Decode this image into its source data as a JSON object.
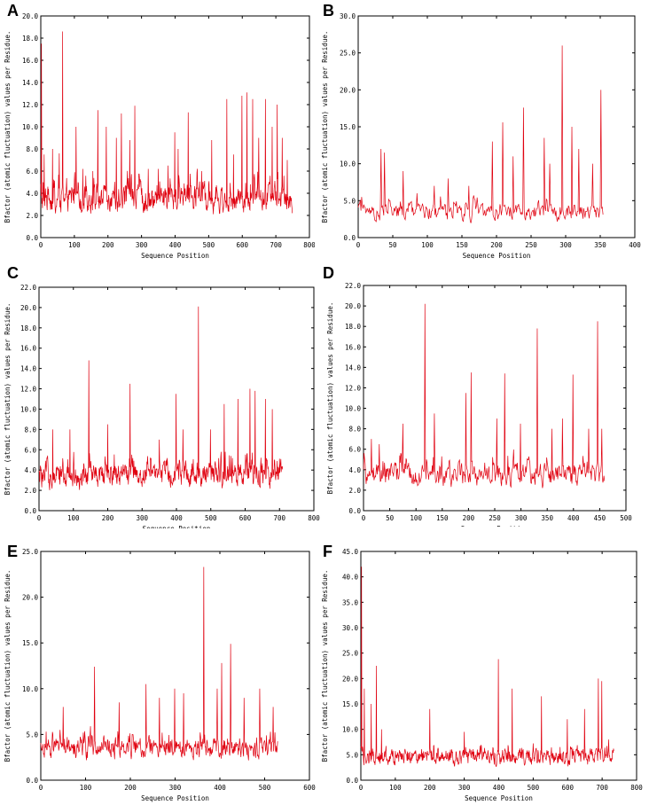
{
  "figure": {
    "panels": [
      {
        "letter": "A",
        "xlabel": "Sequence Position",
        "ylabel": "Bfactor (atomic fluctuation) values per Residue."
      },
      {
        "letter": "B",
        "xlabel": "Sequence Position",
        "ylabel": "Bfactor (atomic fluctuation) values per Residue."
      },
      {
        "letter": "C",
        "xlabel": "Sequence Position",
        "ylabel": "Bfactor (atomic fluctuation) values per Residue."
      },
      {
        "letter": "D",
        "xlabel": "Sequence Position",
        "ylabel": "Bfactor (atomic fluctuation) values per Residue."
      },
      {
        "letter": "E",
        "xlabel": "Sequence Position",
        "ylabel": "Bfactor (atomic fluctuation) values per Residue."
      },
      {
        "letter": "F",
        "xlabel": "Sequence Position",
        "ylabel": "Bfactor (atomic fluctuation) values per Residue."
      }
    ]
  },
  "colors": {
    "series": "#e0000f",
    "axis": "#000000"
  },
  "chart_data": [
    {
      "type": "line",
      "panel": "A",
      "xlabel": "Sequence Position",
      "ylabel": "Bfactor (atomic fluctuation) values per Residue.",
      "xlim": [
        0,
        800
      ],
      "ylim": [
        0,
        20
      ],
      "xticks": [
        "0",
        "100",
        "200",
        "300",
        "400",
        "500",
        "600",
        "700",
        "800"
      ],
      "yticks": [
        "0.0",
        "2.0",
        "4.0",
        "6.0",
        "8.0",
        "10.0",
        "12.0",
        "14.0",
        "16.0",
        "18.0",
        "20.0"
      ],
      "grid": false,
      "n_points": 750,
      "baseline": 3.4,
      "noise": 1.2,
      "peaks": [
        [
          2,
          17.5
        ],
        [
          10,
          7.5
        ],
        [
          35,
          8.0
        ],
        [
          55,
          7.6
        ],
        [
          65,
          18.6
        ],
        [
          105,
          10.0
        ],
        [
          125,
          6.2
        ],
        [
          155,
          6.0
        ],
        [
          170,
          11.5
        ],
        [
          195,
          10.0
        ],
        [
          225,
          9.0
        ],
        [
          240,
          11.2
        ],
        [
          265,
          8.8
        ],
        [
          280,
          11.9
        ],
        [
          320,
          6.2
        ],
        [
          350,
          6.2
        ],
        [
          380,
          6.5
        ],
        [
          400,
          9.5
        ],
        [
          410,
          8.0
        ],
        [
          440,
          11.3
        ],
        [
          480,
          6.0
        ],
        [
          510,
          8.8
        ],
        [
          555,
          12.5
        ],
        [
          575,
          7.5
        ],
        [
          600,
          12.8
        ],
        [
          615,
          13.1
        ],
        [
          632,
          12.5
        ],
        [
          650,
          9.0
        ],
        [
          670,
          12.5
        ],
        [
          690,
          10.0
        ],
        [
          705,
          12.0
        ],
        [
          720,
          9.0
        ],
        [
          735,
          7.0
        ]
      ],
      "series": [
        {
          "values": []
        }
      ]
    },
    {
      "type": "line",
      "panel": "B",
      "xlabel": "Sequence Position",
      "ylabel": "Bfactor (atomic fluctuation) values per Residue.",
      "xlim": [
        0,
        400
      ],
      "ylim": [
        0,
        30
      ],
      "xticks": [
        "0",
        "50",
        "100",
        "150",
        "200",
        "250",
        "300",
        "350",
        "400"
      ],
      "yticks": [
        "0.0",
        "5.0",
        "10.0",
        "15.0",
        "20.0",
        "25.0",
        "30.0"
      ],
      "grid": false,
      "n_points": 355,
      "baseline": 3.4,
      "noise": 1.2,
      "peaks": [
        [
          5,
          5.5
        ],
        [
          33,
          12.0
        ],
        [
          38,
          11.5
        ],
        [
          65,
          9.0
        ],
        [
          85,
          6.0
        ],
        [
          110,
          7.0
        ],
        [
          130,
          8.0
        ],
        [
          160,
          7.0
        ],
        [
          195,
          13.0
        ],
        [
          210,
          15.6
        ],
        [
          225,
          11.0
        ],
        [
          240,
          17.6
        ],
        [
          270,
          13.5
        ],
        [
          278,
          10.0
        ],
        [
          296,
          26.0
        ],
        [
          310,
          15.0
        ],
        [
          320,
          12.0
        ],
        [
          340,
          10.0
        ],
        [
          352,
          20.0
        ]
      ],
      "series": [
        {
          "values": []
        }
      ]
    },
    {
      "type": "line",
      "panel": "C",
      "xlabel": "Sequence Position",
      "ylabel": "Bfactor (atomic fluctuation) values per Residue.",
      "xlim": [
        0,
        800
      ],
      "ylim": [
        0,
        22
      ],
      "xticks": [
        "0",
        "100",
        "200",
        "300",
        "400",
        "500",
        "600",
        "700",
        "800"
      ],
      "yticks": [
        "0.0",
        "2.0",
        "4.0",
        "6.0",
        "8.0",
        "10.0",
        "12.0",
        "14.0",
        "16.0",
        "18.0",
        "20.0",
        "22.0"
      ],
      "grid": false,
      "n_points": 710,
      "baseline": 3.4,
      "noise": 1.2,
      "peaks": [
        [
          40,
          8.0
        ],
        [
          90,
          8.0
        ],
        [
          145,
          14.8
        ],
        [
          200,
          8.5
        ],
        [
          265,
          12.5
        ],
        [
          350,
          7.0
        ],
        [
          400,
          11.5
        ],
        [
          420,
          8.0
        ],
        [
          465,
          20.1
        ],
        [
          500,
          8.0
        ],
        [
          540,
          10.5
        ],
        [
          580,
          11.0
        ],
        [
          615,
          12.0
        ],
        [
          630,
          11.8
        ],
        [
          660,
          11.0
        ],
        [
          680,
          10.0
        ]
      ],
      "series": [
        {
          "values": []
        }
      ]
    },
    {
      "type": "line",
      "panel": "D",
      "xlabel": "Sequence Position",
      "ylabel": "Bfactor (atomic fluctuation) values per Residue.",
      "xlim": [
        0,
        500
      ],
      "ylim": [
        0,
        22
      ],
      "xticks": [
        "0",
        "50",
        "100",
        "150",
        "200",
        "250",
        "300",
        "350",
        "400",
        "450",
        "500"
      ],
      "yticks": [
        "0.0",
        "2.0",
        "4.0",
        "6.0",
        "8.0",
        "10.0",
        "12.0",
        "14.0",
        "16.0",
        "18.0",
        "20.0",
        "22.0"
      ],
      "grid": false,
      "n_points": 460,
      "baseline": 3.4,
      "noise": 1.2,
      "peaks": [
        [
          15,
          7.0
        ],
        [
          30,
          6.5
        ],
        [
          75,
          8.5
        ],
        [
          117,
          20.2
        ],
        [
          135,
          9.5
        ],
        [
          195,
          11.5
        ],
        [
          205,
          13.5
        ],
        [
          255,
          9.0
        ],
        [
          270,
          13.4
        ],
        [
          300,
          8.5
        ],
        [
          332,
          17.8
        ],
        [
          360,
          8.0
        ],
        [
          380,
          9.0
        ],
        [
          400,
          13.3
        ],
        [
          430,
          8.0
        ],
        [
          447,
          18.5
        ],
        [
          455,
          8.0
        ]
      ],
      "series": [
        {
          "values": []
        }
      ]
    },
    {
      "type": "line",
      "panel": "E",
      "xlabel": "Sequence Position",
      "ylabel": "Bfactor (atomic fluctuation) values per Residue.",
      "xlim": [
        0,
        600
      ],
      "ylim": [
        0,
        25
      ],
      "xticks": [
        "0",
        "100",
        "200",
        "300",
        "400",
        "500",
        "600"
      ],
      "yticks": [
        "0.0",
        "5.0",
        "10.0",
        "15.0",
        "20.0",
        "25.0"
      ],
      "grid": false,
      "n_points": 530,
      "baseline": 3.4,
      "noise": 1.2,
      "peaks": [
        [
          50,
          8.0
        ],
        [
          120,
          12.4
        ],
        [
          175,
          8.5
        ],
        [
          235,
          10.5
        ],
        [
          265,
          9.0
        ],
        [
          300,
          10.0
        ],
        [
          320,
          9.5
        ],
        [
          365,
          23.3
        ],
        [
          395,
          10.0
        ],
        [
          405,
          12.8
        ],
        [
          425,
          14.9
        ],
        [
          455,
          9.0
        ],
        [
          490,
          10.0
        ],
        [
          520,
          8.0
        ]
      ],
      "series": [
        {
          "values": []
        }
      ]
    },
    {
      "type": "line",
      "panel": "F",
      "xlabel": "Sequence Position",
      "ylabel": "Bfactor (atomic fluctuation) values per Residue.",
      "xlim": [
        0,
        800
      ],
      "ylim": [
        0,
        45
      ],
      "xticks": [
        "0",
        "100",
        "200",
        "300",
        "400",
        "500",
        "600",
        "700",
        "800"
      ],
      "yticks": [
        "0.0",
        "5.0",
        "10.0",
        "15.0",
        "20.0",
        "25.0",
        "30.0",
        "35.0",
        "40.0",
        "45.0"
      ],
      "grid": false,
      "n_points": 735,
      "baseline": 4.5,
      "noise": 1.6,
      "peaks": [
        [
          2,
          42.0
        ],
        [
          10,
          18.0
        ],
        [
          30,
          15.0
        ],
        [
          45,
          22.5
        ],
        [
          60,
          10.0
        ],
        [
          200,
          14.0
        ],
        [
          300,
          9.5
        ],
        [
          400,
          23.8
        ],
        [
          440,
          18.0
        ],
        [
          525,
          16.5
        ],
        [
          600,
          12.0
        ],
        [
          650,
          14.0
        ],
        [
          690,
          20.0
        ],
        [
          700,
          19.5
        ],
        [
          720,
          8.0
        ]
      ],
      "series": [
        {
          "values": []
        }
      ]
    }
  ]
}
